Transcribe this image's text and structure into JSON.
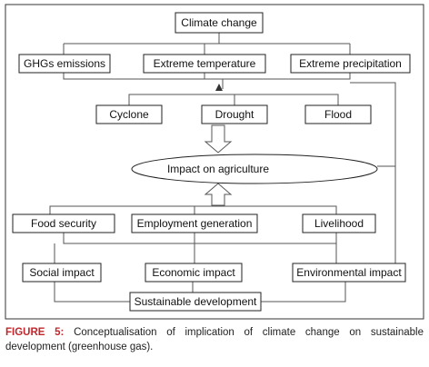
{
  "nodes": [
    {
      "label": "Climate change"
    },
    {
      "label": "GHGs emissions"
    },
    {
      "label": "Extreme temperature"
    },
    {
      "label": "Extreme precipitation"
    },
    {
      "label": "Cyclone"
    },
    {
      "label": "Drought"
    },
    {
      "label": "Flood"
    },
    {
      "label": "Impact on agriculture"
    },
    {
      "label": "Food security"
    },
    {
      "label": "Employment generation"
    },
    {
      "label": "Livelihood"
    },
    {
      "label": "Social impact"
    },
    {
      "label": "Economic impact"
    },
    {
      "label": "Environmental impact"
    },
    {
      "label": "Sustainable development"
    }
  ],
  "caption": {
    "label": "FIGURE 5:",
    "text": "Conceptualisation of implication of climate change on sustainable development (greenhouse gas)."
  }
}
